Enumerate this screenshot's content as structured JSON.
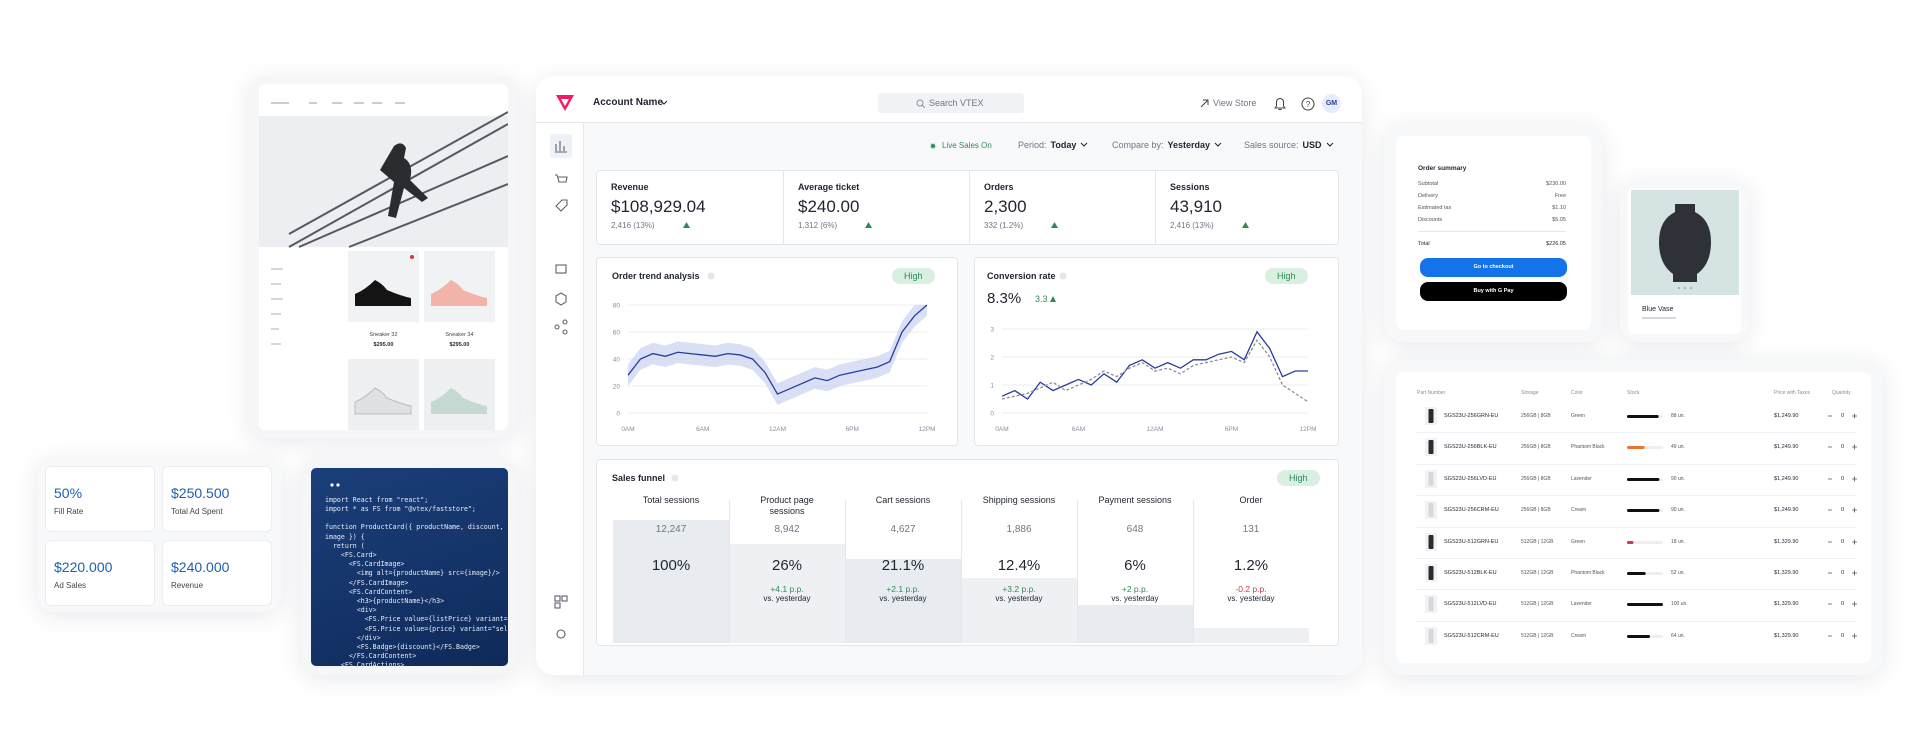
{
  "storefront": {
    "products": [
      {
        "name": "Sneaker 32",
        "price": "$295.00"
      },
      {
        "name": "Sneaker 34",
        "price": "$295.00"
      }
    ]
  },
  "metrics": [
    {
      "value": "50%",
      "label": "Fill Rate"
    },
    {
      "value": "$250.500",
      "label": "Total Ad Spent"
    },
    {
      "value": "$220.000",
      "label": "Ad Sales"
    },
    {
      "value": "$240.000",
      "label": "Revenue"
    }
  ],
  "code": {
    "lines": [
      "import React from \"react\";",
      "import * as FS from \"@vtex/faststore\";",
      "function ProductCard({ productName, discount, price,",
      "image }) {",
      "  return (",
      "    <FS.Card>",
      "      <FS.CardImage>",
      "        <img alt={productName} src={image}/>",
      "      </FS.CardImage>",
      "      <FS.CardContent>",
      "        <h3>{productName}</h3>",
      "        <div>",
      "          <FS.Price value={listPrice} variant=\"selling\" />",
      "          <FS.Price value={price} variant=\"selling\" />",
      "        </div>",
      "        <FS.Badge>{discount}</FS.Badge>",
      "      </FS.CardContent>",
      "    <FS.CardActions>"
    ]
  },
  "dashboard": {
    "account": "Account Name",
    "search": "Search VTEX",
    "view_store": "View Store",
    "avatar": "GM",
    "live": "Live Sales On",
    "filters": [
      {
        "label": "Period:",
        "value": "Today"
      },
      {
        "label": "Compare by:",
        "value": "Yesterday"
      },
      {
        "label": "Sales source:",
        "value": "USD"
      }
    ],
    "kpis": [
      {
        "label": "Revenue",
        "value": "$108,929.04",
        "delta": "2,416 (13%)"
      },
      {
        "label": "Average ticket",
        "value": "$240.00",
        "delta": "1,312 (6%)"
      },
      {
        "label": "Orders",
        "value": "2,300",
        "delta": "332 (1.2%)"
      },
      {
        "label": "Sessions",
        "value": "43,910",
        "delta": "2,416 (13%)"
      }
    ],
    "order_trend": {
      "type": "line",
      "title": "Order trend analysis",
      "badge": "High",
      "grid": true,
      "xlim": [
        0,
        24
      ],
      "ylim": [
        0,
        80
      ],
      "yticks": [
        0,
        20,
        40,
        60,
        80
      ],
      "xticks": [
        {
          "value": 0,
          "label": "0AM"
        },
        {
          "value": 6,
          "label": "6AM"
        },
        {
          "value": 12,
          "label": "12AM"
        },
        {
          "value": 18,
          "label": "6PM"
        },
        {
          "value": 24,
          "label": "12PM"
        }
      ],
      "x": [
        0,
        1,
        2,
        3,
        4,
        5,
        6,
        7,
        8,
        9,
        10,
        11,
        12,
        13,
        14,
        15,
        16,
        17,
        18,
        19,
        20,
        21,
        22,
        23,
        24
      ],
      "series": [
        {
          "color": "#2b3d9c",
          "values": [
            28,
            40,
            44,
            42,
            45,
            44,
            43,
            42,
            44,
            43,
            40,
            30,
            14,
            18,
            22,
            26,
            24,
            28,
            30,
            32,
            34,
            38,
            60,
            72,
            80
          ],
          "band_lower": [
            20,
            32,
            36,
            34,
            37,
            36,
            35,
            34,
            36,
            35,
            32,
            22,
            6,
            10,
            14,
            18,
            16,
            20,
            22,
            24,
            26,
            30,
            52,
            64,
            72
          ],
          "band_upper": [
            36,
            48,
            52,
            50,
            53,
            52,
            51,
            50,
            52,
            51,
            48,
            38,
            22,
            26,
            30,
            34,
            32,
            36,
            38,
            40,
            42,
            46,
            68,
            80,
            80
          ],
          "band_color": "#c9d2f0"
        }
      ]
    },
    "conversion": {
      "type": "line",
      "title": "Conversion rate",
      "badge": "High",
      "value": "8.3%",
      "delta": "3.3",
      "grid": true,
      "xlim": [
        0,
        24
      ],
      "ylim": [
        0,
        3
      ],
      "yticks": [
        0,
        1,
        2,
        3
      ],
      "xticks": [
        {
          "value": 0,
          "label": "0AM"
        },
        {
          "value": 6,
          "label": "6AM"
        },
        {
          "value": 12,
          "label": "12AM"
        },
        {
          "value": 18,
          "label": "6PM"
        },
        {
          "value": 24,
          "label": "12PM"
        }
      ],
      "x": [
        0,
        1,
        2,
        3,
        4,
        5,
        6,
        7,
        8,
        9,
        10,
        11,
        12,
        13,
        14,
        15,
        16,
        17,
        18,
        19,
        20,
        21,
        22,
        23,
        24
      ],
      "series": [
        {
          "color": "#2b3d9c",
          "dashed": false,
          "values": [
            0.6,
            0.8,
            0.5,
            1.1,
            0.8,
            1.0,
            1.2,
            1.0,
            1.4,
            1.1,
            1.7,
            1.9,
            1.6,
            1.8,
            1.6,
            1.9,
            1.9,
            2.1,
            2.2,
            1.9,
            2.9,
            2.3,
            1.3,
            1.5,
            1.5
          ]
        },
        {
          "color": "#8a8f9c",
          "dashed": true,
          "values": [
            0.5,
            0.6,
            0.7,
            0.9,
            1.1,
            0.8,
            1.0,
            1.2,
            1.5,
            1.3,
            1.6,
            1.8,
            1.5,
            1.6,
            1.4,
            1.7,
            1.8,
            1.9,
            2.0,
            1.8,
            2.6,
            2.0,
            1.0,
            0.7,
            0.4
          ]
        }
      ]
    },
    "funnel": {
      "title": "Sales funnel",
      "badge": "High",
      "comparison": "vs. yesterday",
      "steps": [
        {
          "name": "Total sessions",
          "count": "12,247",
          "rate": "100%"
        },
        {
          "name": "Product page sessions",
          "count": "8,942",
          "rate": "26%",
          "delta": "+4.1 p.p."
        },
        {
          "name": "Cart sessions",
          "count": "4,627",
          "rate": "21.1%",
          "delta": "+2.1 p.p."
        },
        {
          "name": "Shipping sessions",
          "count": "1,886",
          "rate": "12.4%",
          "delta": "+3.2 p.p."
        },
        {
          "name": "Payment sessions",
          "count": "648",
          "rate": "6%",
          "delta": "+2 p.p."
        },
        {
          "name": "Order",
          "count": "131",
          "rate": "1.2%",
          "delta": "-0.2 p.p."
        }
      ]
    }
  },
  "order_summary": {
    "title": "Order summary",
    "rows": [
      {
        "label": "Subtotal",
        "value": "$230.00"
      },
      {
        "label": "Delivery",
        "value": "Free"
      },
      {
        "label": "Estimated tax",
        "value": "$1.10"
      },
      {
        "label": "Discounts",
        "value": "$5.05"
      }
    ],
    "total": {
      "label": "Total",
      "value": "$226.05"
    },
    "checkout": "Go to checkout",
    "pay": "Buy with G Pay"
  },
  "vase": {
    "name": "Blue Vase"
  },
  "table": {
    "headers": [
      "Part Number",
      "Storage",
      "Color",
      "Stock",
      "Price with Taxes",
      "Quantity"
    ],
    "rows": [
      {
        "part": "SGS23U-256GRN-EU",
        "storage": "256GB | 8GB",
        "color": "Green",
        "stock_value": 88,
        "stock": "88 un.",
        "bar_color": "#111111",
        "price": "$1,249.90",
        "qty": "0"
      },
      {
        "part": "SGS23U-256BLK-EU",
        "storage": "256GB | 8GB",
        "color": "Phantom Black",
        "stock_value": 49,
        "stock": "49 un.",
        "bar_color": "#e8772e",
        "price": "$1,249.90",
        "qty": "0"
      },
      {
        "part": "SGS23U-256LVD-EU",
        "storage": "256GB | 8GB",
        "color": "Lavender",
        "stock_value": 90,
        "stock": "90 un.",
        "bar_color": "#111111",
        "price": "$1,249.90",
        "qty": "0"
      },
      {
        "part": "SGS23U-256CRM-EU",
        "storage": "256GB | 8GB",
        "color": "Cream",
        "stock_value": 90,
        "stock": "90 un.",
        "bar_color": "#111111",
        "price": "$1,249.90",
        "qty": "0"
      },
      {
        "part": "SGS23U-512GRN-EU",
        "storage": "512GB | 12GB",
        "color": "Green",
        "stock_value": 18,
        "stock": "18 un.",
        "bar_color": "#d0364a",
        "price": "$1,329.90",
        "qty": "0"
      },
      {
        "part": "SGS23U-512BLK-EU",
        "storage": "512GB | 12GB",
        "color": "Phantom Black",
        "stock_value": 52,
        "stock": "52 un.",
        "bar_color": "#111111",
        "price": "$1,329.90",
        "qty": "0"
      },
      {
        "part": "SGS23U-512LVD-EU",
        "storage": "512GB | 12GB",
        "color": "Lavender",
        "stock_value": 100,
        "stock": "100 un.",
        "bar_color": "#111111",
        "price": "$1,329.90",
        "qty": "0"
      },
      {
        "part": "SGS23U-512CRM-EU",
        "storage": "512GB | 12GB",
        "color": "Cream",
        "stock_value": 64,
        "stock": "64 un.",
        "bar_color": "#111111",
        "price": "$1,329.90",
        "qty": "0"
      }
    ]
  }
}
